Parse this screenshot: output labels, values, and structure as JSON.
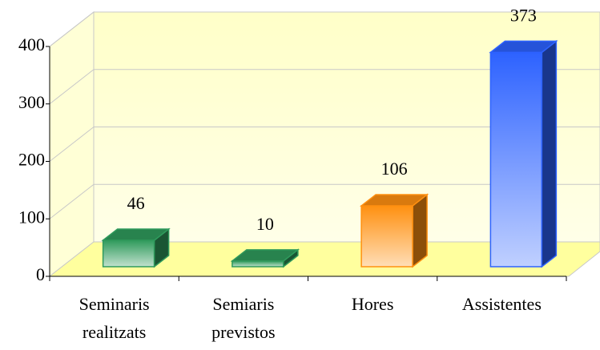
{
  "chart_data": {
    "type": "bar3d",
    "categories": [
      [
        "Seminaris",
        "realitzats"
      ],
      [
        "Semiaris",
        "previstos"
      ],
      [
        "Hores"
      ],
      [
        "Assistentes"
      ]
    ],
    "values": [
      46,
      10,
      106,
      373
    ],
    "colors": [
      "#2f9a5c",
      "#2f9a5c",
      "#ff9010",
      "#2d62ff"
    ],
    "ylim": [
      0,
      400
    ],
    "yticks": [
      0,
      100,
      200,
      300,
      400
    ],
    "grid": true
  }
}
